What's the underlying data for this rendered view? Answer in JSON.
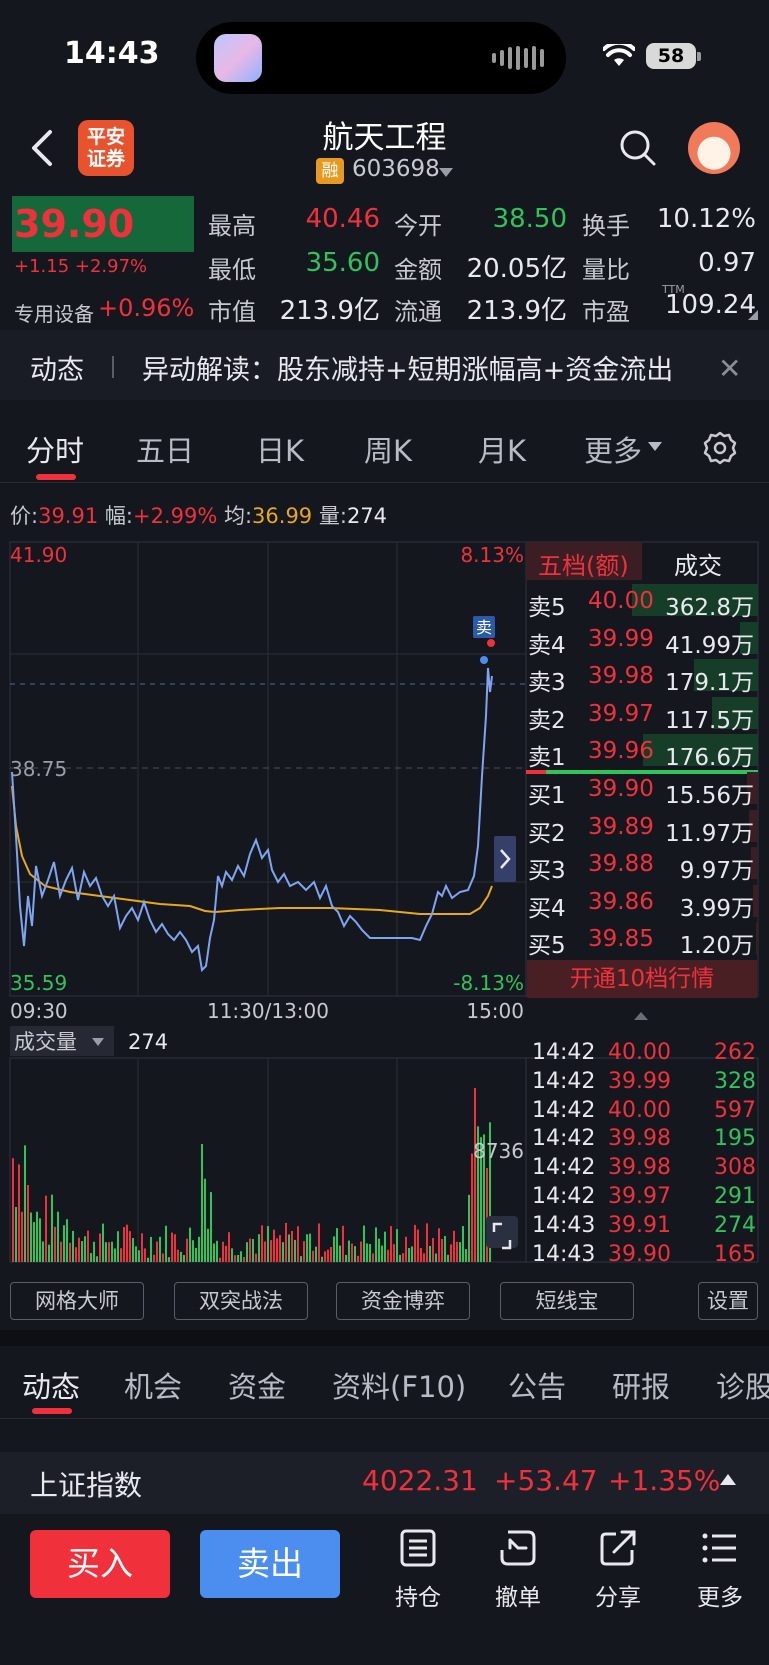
{
  "status_bar": {
    "time": "14:43",
    "battery": "58"
  },
  "header": {
    "broker_logo": "平安\n证券",
    "stock_name": "航天工程",
    "margin_badge": "融",
    "stock_code": "603698"
  },
  "quote": {
    "last_price": "39.90",
    "change": "+1.15 +2.97%",
    "sector_name": "专用设备",
    "sector_change": "+0.96%",
    "fields": [
      {
        "label": "最高",
        "value": "40.46",
        "color": "#f0313b"
      },
      {
        "label": "今开",
        "value": "38.50",
        "color": "#2fc35c"
      },
      {
        "label": "换手",
        "value": "10.12%",
        "color": "#e8e9ee"
      },
      {
        "label": "最低",
        "value": "35.60",
        "color": "#2fc35c"
      },
      {
        "label": "金额",
        "value": "20.05亿",
        "color": "#e8e9ee"
      },
      {
        "label": "量比",
        "value": "0.97",
        "color": "#e8e9ee"
      },
      {
        "label": "市值",
        "value": "213.9亿",
        "color": "#e8e9ee"
      },
      {
        "label": "流通",
        "value": "213.9亿",
        "color": "#e8e9ee"
      },
      {
        "label": "市盈",
        "value": "109.24",
        "color": "#e8e9ee"
      }
    ],
    "ttm": "TTM"
  },
  "news": {
    "tag": "动态",
    "text": "异动解读：股东减持+短期涨幅高+资金流出"
  },
  "chart_tabs": [
    "分时",
    "五日",
    "日K",
    "周K",
    "月K",
    "更多"
  ],
  "quote_line": {
    "price_label": "价:",
    "price": "39.91",
    "amp_label": "幅:",
    "amp": "+2.99%",
    "avg_label": "均:",
    "avg": "36.99",
    "vol_label": "量:",
    "vol": "274"
  },
  "chart_data": {
    "type": "line",
    "y_top": "41.90",
    "y_mid": "38.75",
    "y_bottom": "35.59",
    "pct_top": "8.13%",
    "pct_bottom": "-8.13%",
    "x_labels": [
      "09:30",
      "11:30/13:00",
      "15:00"
    ],
    "sell_marker": "卖",
    "volume_label": "成交量",
    "volume_value": "274",
    "volume_axis": "8736"
  },
  "order_book": {
    "tabs": [
      "五档(额)",
      "成交"
    ],
    "asks": [
      {
        "label": "卖5",
        "price": "40.00",
        "amount": "362.8万"
      },
      {
        "label": "卖4",
        "price": "39.99",
        "amount": "41.99万"
      },
      {
        "label": "卖3",
        "price": "39.98",
        "amount": "179.1万"
      },
      {
        "label": "卖2",
        "price": "39.97",
        "amount": "117.5万"
      },
      {
        "label": "卖1",
        "price": "39.96",
        "amount": "176.6万"
      }
    ],
    "bids": [
      {
        "label": "买1",
        "price": "39.90",
        "amount": "15.56万"
      },
      {
        "label": "买2",
        "price": "39.89",
        "amount": "11.97万"
      },
      {
        "label": "买3",
        "price": "39.88",
        "amount": "9.97万"
      },
      {
        "label": "买4",
        "price": "39.86",
        "amount": "3.99万"
      },
      {
        "label": "买5",
        "price": "39.85",
        "amount": "1.20万"
      }
    ],
    "upgrade": "开通10档行情"
  },
  "trades": [
    {
      "time": "14:42",
      "price": "40.00",
      "vol": "262",
      "color": "#f0313b"
    },
    {
      "time": "14:42",
      "price": "39.99",
      "vol": "328",
      "color": "#2fc35c"
    },
    {
      "time": "14:42",
      "price": "40.00",
      "vol": "597",
      "color": "#f0313b"
    },
    {
      "time": "14:42",
      "price": "39.98",
      "vol": "195",
      "color": "#2fc35c"
    },
    {
      "time": "14:42",
      "price": "39.98",
      "vol": "308",
      "color": "#f0313b"
    },
    {
      "time": "14:42",
      "price": "39.97",
      "vol": "291",
      "color": "#2fc35c"
    },
    {
      "time": "14:43",
      "price": "39.91",
      "vol": "274",
      "color": "#2fc35c"
    },
    {
      "time": "14:43",
      "price": "39.90",
      "vol": "165",
      "color": "#f0313b"
    }
  ],
  "tools": [
    "网格大师",
    "双突战法",
    "资金博弈",
    "短线宝",
    "设置"
  ],
  "bottom_tabs": [
    "动态",
    "机会",
    "资金",
    "资料(F10)",
    "公告",
    "研报",
    "诊股"
  ],
  "index_bar": {
    "name": "上证指数",
    "value": "4022.31",
    "change": "+53.47",
    "pct": "+1.35%"
  },
  "actions": {
    "buy": "买入",
    "sell": "卖出",
    "holdings": "持仓",
    "cancel": "撤单",
    "share": "分享",
    "more": "更多"
  }
}
